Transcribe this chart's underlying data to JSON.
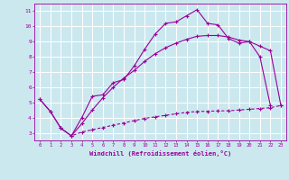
{
  "xlabel": "Windchill (Refroidissement éolien,°C)",
  "bg_color": "#cce8ef",
  "line_color": "#990099",
  "grid_color": "#ffffff",
  "xmin": -0.5,
  "xmax": 23.5,
  "ymin": 2.5,
  "ymax": 11.5,
  "yticks": [
    3,
    4,
    5,
    6,
    7,
    8,
    9,
    10,
    11
  ],
  "xticks": [
    0,
    1,
    2,
    3,
    4,
    5,
    6,
    7,
    8,
    9,
    10,
    11,
    12,
    13,
    14,
    15,
    16,
    17,
    18,
    19,
    20,
    21,
    22,
    23
  ],
  "line1_x": [
    0,
    1,
    2,
    3,
    4,
    5,
    6,
    7,
    8,
    9,
    10,
    11,
    12,
    13,
    14,
    15,
    16,
    17,
    18,
    19,
    20,
    21,
    22
  ],
  "line1_y": [
    5.2,
    4.4,
    3.3,
    2.8,
    4.0,
    5.4,
    5.5,
    6.3,
    6.5,
    7.4,
    8.5,
    9.5,
    10.2,
    10.3,
    10.7,
    11.1,
    10.2,
    10.1,
    9.2,
    8.9,
    9.0,
    8.0,
    4.8
  ],
  "line2_x": [
    0,
    1,
    2,
    3,
    4,
    5,
    6,
    7,
    8,
    9,
    10,
    11,
    12,
    13,
    14,
    15,
    16,
    17,
    18,
    19,
    20,
    21,
    22,
    23
  ],
  "line2_y": [
    5.2,
    4.4,
    3.3,
    2.8,
    3.6,
    4.5,
    5.3,
    6.0,
    6.6,
    7.1,
    7.7,
    8.2,
    8.6,
    8.9,
    9.15,
    9.35,
    9.4,
    9.4,
    9.3,
    9.1,
    9.0,
    8.7,
    8.4,
    4.8
  ],
  "line3_x": [
    2,
    3,
    4,
    5,
    6,
    7,
    8,
    9,
    10,
    11,
    12,
    13,
    14,
    15,
    16,
    17,
    18,
    19,
    20,
    21,
    22,
    23
  ],
  "line3_y": [
    3.3,
    2.8,
    3.05,
    3.2,
    3.35,
    3.5,
    3.65,
    3.8,
    3.95,
    4.05,
    4.15,
    4.25,
    4.35,
    4.4,
    4.42,
    4.44,
    4.45,
    4.5,
    4.55,
    4.6,
    4.65,
    4.8
  ]
}
